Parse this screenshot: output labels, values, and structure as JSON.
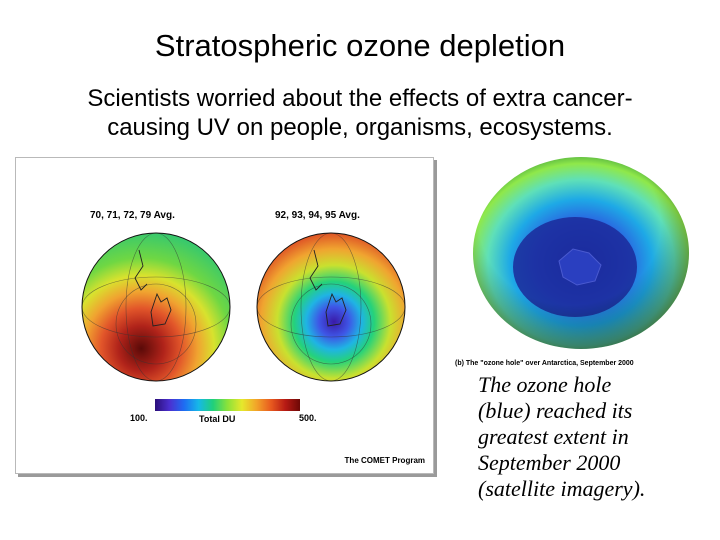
{
  "slide": {
    "title": "Stratospheric ozone depletion",
    "subtitle_lines": [
      "Scientists worried about the effects of extra cancer-",
      "causing UV on people, organisms, ecosystems."
    ]
  },
  "comet_figure": {
    "left_globe_label": "70, 71, 72, 79 Avg.",
    "right_globe_label": "92, 93, 94, 95 Avg.",
    "colorbar": {
      "min_label": "100.",
      "title": "Total DU",
      "max_label": "500."
    },
    "credit": "The COMET Program"
  },
  "satellite_figure": {
    "caption": "(b) The \"ozone hole\" over Antarctica, September 2000"
  },
  "note_lines": [
    "The ozone hole",
    "(blue) reached its",
    "greatest extent in",
    "September 2000",
    "(satellite imagery)."
  ]
}
